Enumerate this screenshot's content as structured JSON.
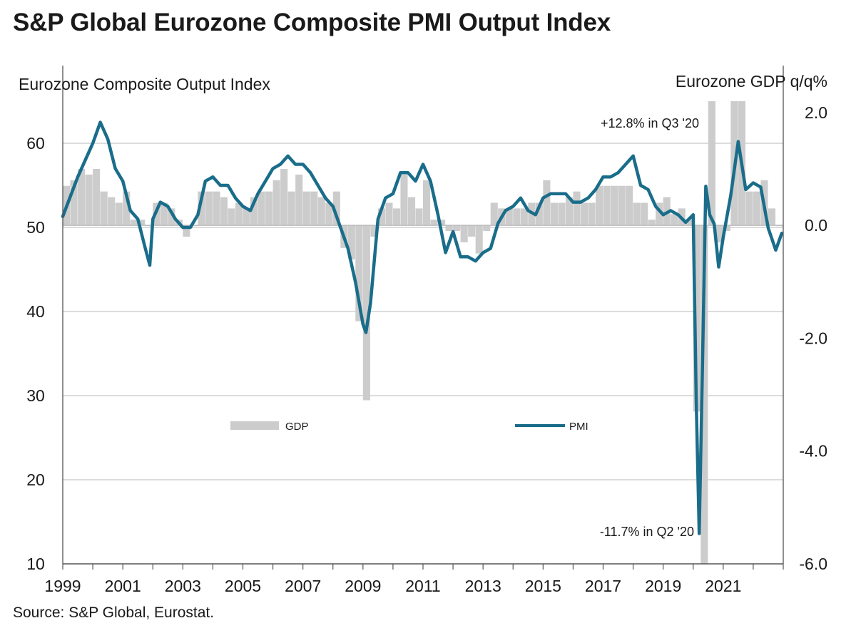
{
  "title": "S&P Global Eurozone Composite PMI Output Index",
  "source": "Source: S&P Global, Eurostat.",
  "colors": {
    "pmi": "#1a6d8a",
    "gdp": "#cccccc",
    "grid": "#c8c8c8",
    "axis": "#555555"
  },
  "chart_data": {
    "type": "bar+line",
    "left_axis_label": "Eurozone Composite Output Index",
    "right_axis_label": "Eurozone GDP q/q%",
    "left_ylim": [
      10,
      65
    ],
    "left_ticks": [
      10,
      20,
      30,
      40,
      50,
      60
    ],
    "right_ylim": [
      -6.0,
      2.2
    ],
    "right_ticks": [
      "2.0",
      "0.0",
      "-2.0",
      "-4.0",
      "-6.0"
    ],
    "right_tick_values": [
      2.0,
      0.0,
      -2.0,
      -4.0,
      -6.0
    ],
    "xlim": [
      1999.0,
      2023.0
    ],
    "x_ticks": [
      "1999",
      "2001",
      "2003",
      "2005",
      "2007",
      "2009",
      "2011",
      "2013",
      "2015",
      "2017",
      "2019",
      "2021"
    ],
    "legend": {
      "gdp_label": "GDP",
      "pmi_label": "PMI"
    },
    "annotations": {
      "gdp_high": "+12.8% in Q3 '20",
      "gdp_low": "-11.7% in Q2 '20"
    },
    "gdp": {
      "name": "GDP",
      "quarters": [
        1999.0,
        1999.25,
        1999.5,
        1999.75,
        2000.0,
        2000.25,
        2000.5,
        2000.75,
        2001.0,
        2001.25,
        2001.5,
        2001.75,
        2002.0,
        2002.25,
        2002.5,
        2002.75,
        2003.0,
        2003.25,
        2003.5,
        2003.75,
        2004.0,
        2004.25,
        2004.5,
        2004.75,
        2005.0,
        2005.25,
        2005.5,
        2005.75,
        2006.0,
        2006.25,
        2006.5,
        2006.75,
        2007.0,
        2007.25,
        2007.5,
        2007.75,
        2008.0,
        2008.25,
        2008.5,
        2008.75,
        2009.0,
        2009.25,
        2009.5,
        2009.75,
        2010.0,
        2010.25,
        2010.5,
        2010.75,
        2011.0,
        2011.25,
        2011.5,
        2011.75,
        2012.0,
        2012.25,
        2012.5,
        2012.75,
        2013.0,
        2013.25,
        2013.5,
        2013.75,
        2014.0,
        2014.25,
        2014.5,
        2014.75,
        2015.0,
        2015.25,
        2015.5,
        2015.75,
        2016.0,
        2016.25,
        2016.5,
        2016.75,
        2017.0,
        2017.25,
        2017.5,
        2017.75,
        2018.0,
        2018.25,
        2018.5,
        2018.75,
        2019.0,
        2019.25,
        2019.5,
        2019.75,
        2020.0,
        2020.25,
        2020.5,
        2020.75,
        2021.0,
        2021.25,
        2021.5,
        2021.75,
        2022.0,
        2022.25,
        2022.5,
        2022.75
      ],
      "values": [
        0.7,
        0.8,
        1.0,
        0.9,
        1.0,
        0.6,
        0.5,
        0.4,
        0.6,
        0.1,
        0.1,
        0.0,
        0.4,
        0.4,
        0.3,
        0.1,
        -0.2,
        0.0,
        0.6,
        0.6,
        0.6,
        0.5,
        0.3,
        0.4,
        0.3,
        0.5,
        0.6,
        0.6,
        0.8,
        1.0,
        0.6,
        0.9,
        0.6,
        0.6,
        0.5,
        0.4,
        0.6,
        -0.4,
        -0.6,
        -1.7,
        -3.1,
        -0.2,
        0.3,
        0.4,
        0.3,
        0.9,
        0.5,
        0.3,
        0.8,
        0.1,
        0.1,
        -0.1,
        -0.1,
        -0.3,
        -0.2,
        -0.5,
        -0.1,
        0.4,
        0.3,
        0.3,
        0.3,
        0.3,
        0.4,
        0.4,
        0.8,
        0.4,
        0.4,
        0.5,
        0.6,
        0.4,
        0.4,
        0.7,
        0.7,
        0.7,
        0.7,
        0.7,
        0.4,
        0.4,
        0.1,
        0.4,
        0.5,
        0.2,
        0.3,
        0.1,
        -3.3,
        -11.7,
        12.8,
        -0.3,
        -0.1,
        2.2,
        2.2,
        0.6,
        0.6,
        0.8,
        0.3,
        0.0
      ]
    },
    "pmi": {
      "name": "PMI",
      "x": [
        1999.0,
        1999.5,
        2000.0,
        2000.25,
        2000.5,
        2000.75,
        2001.0,
        2001.25,
        2001.5,
        2001.75,
        2001.9,
        2002.0,
        2002.25,
        2002.5,
        2002.75,
        2003.0,
        2003.25,
        2003.5,
        2003.75,
        2004.0,
        2004.25,
        2004.5,
        2004.75,
        2005.0,
        2005.25,
        2005.5,
        2005.75,
        2006.0,
        2006.25,
        2006.5,
        2006.75,
        2007.0,
        2007.25,
        2007.5,
        2007.75,
        2008.0,
        2008.25,
        2008.5,
        2008.75,
        2009.0,
        2009.1,
        2009.25,
        2009.5,
        2009.75,
        2010.0,
        2010.25,
        2010.5,
        2010.75,
        2011.0,
        2011.25,
        2011.5,
        2011.75,
        2012.0,
        2012.25,
        2012.5,
        2012.75,
        2013.0,
        2013.25,
        2013.5,
        2013.75,
        2014.0,
        2014.25,
        2014.5,
        2014.75,
        2015.0,
        2015.25,
        2015.5,
        2015.75,
        2016.0,
        2016.25,
        2016.5,
        2016.75,
        2017.0,
        2017.25,
        2017.5,
        2017.75,
        2018.0,
        2018.25,
        2018.5,
        2018.75,
        2019.0,
        2019.25,
        2019.5,
        2019.75,
        2020.0,
        2020.1,
        2020.2,
        2020.3,
        2020.42,
        2020.55,
        2020.7,
        2020.85,
        2021.0,
        2021.25,
        2021.5,
        2021.75,
        2022.0,
        2022.25,
        2022.5,
        2022.75,
        2022.95
      ],
      "values": [
        51.3,
        56.0,
        60.0,
        62.5,
        60.5,
        57.0,
        55.5,
        52.0,
        51.0,
        47.5,
        45.5,
        51.0,
        53.0,
        52.5,
        51.0,
        50.0,
        50.0,
        51.5,
        55.5,
        56.0,
        55.0,
        55.0,
        53.5,
        52.5,
        52.0,
        54.0,
        55.5,
        57.0,
        57.5,
        58.5,
        57.5,
        57.5,
        56.5,
        55.0,
        53.5,
        52.5,
        50.0,
        47.5,
        43.5,
        38.5,
        37.5,
        41.0,
        51.0,
        53.5,
        54.0,
        56.5,
        56.5,
        55.5,
        57.5,
        55.5,
        51.5,
        47.0,
        49.5,
        46.5,
        46.5,
        46.0,
        47.0,
        47.5,
        50.5,
        52.0,
        52.5,
        53.5,
        52.0,
        51.5,
        53.5,
        54.0,
        54.0,
        54.0,
        53.0,
        53.0,
        53.5,
        54.5,
        56.0,
        56.0,
        56.5,
        57.5,
        58.5,
        55.0,
        54.5,
        52.5,
        51.5,
        52.0,
        51.5,
        50.6,
        51.5,
        29.5,
        13.6,
        31.9,
        54.9,
        51.5,
        50.4,
        45.3,
        48.8,
        53.8,
        60.2,
        54.5,
        55.3,
        54.8,
        49.9,
        47.3,
        49.3
      ]
    }
  }
}
